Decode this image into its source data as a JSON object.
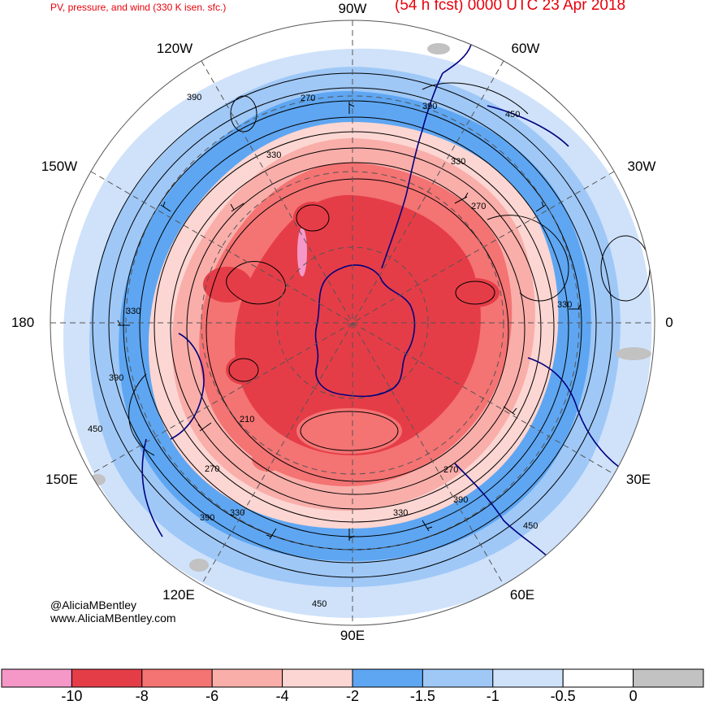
{
  "title_left": "PV, pressure, and wind (330 K isen. sfc.)",
  "title_right": "(54 h fcst) 0000 UTC 23 Apr 2018",
  "credit": {
    "handle": "@AliciaMBentley",
    "site": "www.AliciaMBentley.com"
  },
  "longitude_labels": [
    {
      "name": "lon-90w",
      "text": "90W"
    },
    {
      "name": "lon-60w",
      "text": "60W"
    },
    {
      "name": "lon-30w",
      "text": "30W"
    },
    {
      "name": "lon-0",
      "text": "0"
    },
    {
      "name": "lon-30e",
      "text": "30E"
    },
    {
      "name": "lon-60e",
      "text": "60E"
    },
    {
      "name": "lon-90e",
      "text": "90E"
    },
    {
      "name": "lon-120e",
      "text": "120E"
    },
    {
      "name": "lon-150e",
      "text": "150E"
    },
    {
      "name": "lon-180",
      "text": "180"
    },
    {
      "name": "lon-150w",
      "text": "150W"
    },
    {
      "name": "lon-120w",
      "text": "120W"
    }
  ],
  "contour_labels": [
    "390",
    "270",
    "390",
    "450",
    "330",
    "330",
    "270",
    "330",
    "390",
    "210",
    "450",
    "270",
    "390",
    "330",
    "330",
    "390",
    "270",
    "450",
    "450"
  ],
  "colorbar": {
    "colors": [
      "#f598c8",
      "#e53d47",
      "#f47373",
      "#f9aeaa",
      "#fcd6d2",
      "#5ea6f2",
      "#9fc8f7",
      "#cfe2fa",
      "#ffffff",
      "#c2c2c2"
    ],
    "ticks": [
      "-10",
      "-8",
      "-6",
      "-4",
      "-2",
      "-1.5",
      "-1",
      "-0.5",
      "0"
    ]
  },
  "colors": {
    "title": "#e8000b",
    "coast": "#00007f",
    "contour": "#000000",
    "grid": "#555555",
    "pv_strong": "#e53d47",
    "pv_mid": "#f47373",
    "pv_weak": "#f9aeaa",
    "pv_faint": "#fcd6d2",
    "blue_deep": "#5ea6f2",
    "blue_mid": "#9fc8f7",
    "blue_light": "#cfe2fa",
    "gray": "#c2c2c2"
  }
}
